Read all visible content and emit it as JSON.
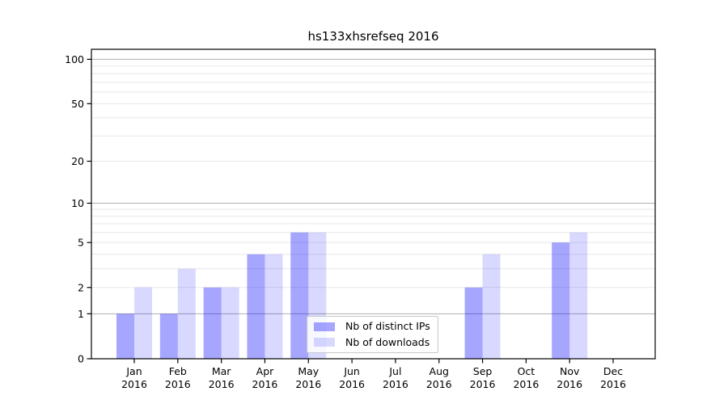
{
  "chart_data": {
    "type": "bar",
    "title": "hs133xhsrefseq 2016",
    "categories": [
      "Jan 2016",
      "Feb 2016",
      "Mar 2016",
      "Apr 2016",
      "May 2016",
      "Jun 2016",
      "Jul 2016",
      "Aug 2016",
      "Sep 2016",
      "Oct 2016",
      "Nov 2016",
      "Dec 2016"
    ],
    "series": [
      {
        "name": "Nb of distinct IPs",
        "color": "rgba(0,0,255,0.35)",
        "values": [
          1,
          1,
          2,
          4,
          6,
          0,
          0,
          0,
          2,
          0,
          5,
          0
        ]
      },
      {
        "name": "Nb of downloads",
        "color": "rgba(0,0,255,0.15)",
        "values": [
          2,
          3,
          2,
          4,
          6,
          0,
          0,
          0,
          4,
          0,
          6,
          0
        ]
      }
    ],
    "yaxis": {
      "ticks": [
        0,
        1,
        2,
        5,
        10,
        20,
        50,
        100
      ],
      "scale": "log1p",
      "range": [
        0,
        120
      ]
    },
    "grid": {
      "on": true,
      "major_values": [
        1,
        10,
        100
      ],
      "minor_values": [
        2,
        3,
        4,
        5,
        6,
        7,
        8,
        9,
        20,
        30,
        40,
        50,
        60,
        70,
        80,
        90
      ],
      "major_color": "#b0b0b0",
      "minor_color": "#e7e7e7"
    },
    "legend": {
      "position": "bottom-center"
    },
    "xlabel": "",
    "ylabel": ""
  }
}
